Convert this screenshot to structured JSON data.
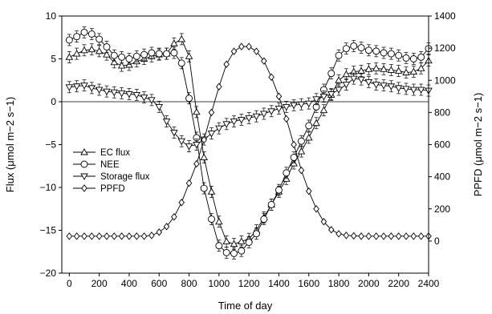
{
  "chart_data": {
    "type": "line",
    "xlabel": "Time of day",
    "ylabel_left": "Flux (μmol m−2 s−1)",
    "ylabel_right": "PPFD (μmol m−2 s−1)",
    "xlim": [
      -50,
      2400
    ],
    "ylim_left": [
      -20,
      10
    ],
    "ylim_right": [
      -200,
      1400
    ],
    "x_ticks": [
      "0",
      "200",
      "400",
      "600",
      "800",
      "1000",
      "1200",
      "1400",
      "1600",
      "1800",
      "2000",
      "2200",
      "2400"
    ],
    "y_left_ticks": [
      "10",
      "5",
      "0",
      "−5",
      "−10",
      "−15",
      "−20"
    ],
    "y_right_ticks": [
      "1400",
      "1200",
      "1000",
      "800",
      "600",
      "400",
      "200",
      "0"
    ],
    "x": [
      0,
      50,
      100,
      150,
      200,
      250,
      300,
      350,
      400,
      450,
      500,
      550,
      600,
      650,
      700,
      750,
      800,
      850,
      900,
      950,
      1000,
      1050,
      1100,
      1150,
      1200,
      1250,
      1300,
      1350,
      1400,
      1450,
      1500,
      1550,
      1600,
      1650,
      1700,
      1750,
      1800,
      1850,
      1900,
      1950,
      2000,
      2050,
      2100,
      2150,
      2200,
      2250,
      2300,
      2350,
      2400
    ],
    "zero_line": 0,
    "legend_position": "middle-left",
    "series": [
      {
        "name": "EC flux",
        "axis": "left",
        "marker": "triangle-up",
        "values": [
          5.2,
          5.6,
          6.0,
          6.1,
          5.9,
          5.5,
          4.6,
          4.2,
          4.3,
          4.7,
          5.0,
          5.3,
          5.5,
          5.6,
          6.8,
          7.3,
          5.3,
          -1.2,
          -6.5,
          -10.5,
          -14.0,
          -16.3,
          -16.6,
          -16.3,
          -16.0,
          -15.0,
          -13.5,
          -12.0,
          -10.5,
          -9.0,
          -7.2,
          -5.8,
          -4.2,
          -2.5,
          -1.0,
          0.8,
          2.5,
          3.2,
          3.5,
          3.6,
          3.8,
          3.9,
          3.8,
          3.7,
          3.6,
          3.4,
          3.5,
          3.9,
          4.8
        ]
      },
      {
        "name": "NEE",
        "axis": "left",
        "marker": "circle",
        "values": [
          7.2,
          7.6,
          8.1,
          7.9,
          7.3,
          6.4,
          5.4,
          5.2,
          5.0,
          5.3,
          5.5,
          5.7,
          5.6,
          5.6,
          5.7,
          4.5,
          0.4,
          -4.2,
          -10.1,
          -13.7,
          -16.8,
          -17.6,
          -17.7,
          -17.4,
          -16.4,
          -15.4,
          -13.7,
          -12.0,
          -10.3,
          -8.3,
          -6.5,
          -4.6,
          -2.8,
          -0.6,
          1.4,
          3.3,
          5.4,
          6.2,
          6.5,
          6.3,
          6.0,
          5.9,
          5.7,
          5.6,
          5.4,
          5.1,
          5.0,
          5.2,
          6.2
        ]
      },
      {
        "name": "Storage flux",
        "axis": "left",
        "marker": "triangle-down",
        "values": [
          1.7,
          1.8,
          1.9,
          1.6,
          1.4,
          1.2,
          1.1,
          1.0,
          0.9,
          0.8,
          0.5,
          0.2,
          -0.6,
          -2.3,
          -3.6,
          -4.6,
          -5.2,
          -5.0,
          -4.4,
          -3.7,
          -3.1,
          -2.6,
          -2.3,
          -2.1,
          -1.9,
          -1.7,
          -1.4,
          -1.1,
          -0.8,
          -0.6,
          -0.4,
          -0.3,
          -0.2,
          0.3,
          0.6,
          0.9,
          1.4,
          2.0,
          2.7,
          2.6,
          2.3,
          2.0,
          1.9,
          1.8,
          1.6,
          1.5,
          1.4,
          1.4,
          1.3
        ]
      },
      {
        "name": "PPFD",
        "axis": "right",
        "marker": "diamond",
        "values": [
          30,
          30,
          30,
          30,
          30,
          30,
          30,
          30,
          30,
          30,
          30,
          35,
          55,
          90,
          150,
          240,
          360,
          480,
          630,
          800,
          960,
          1100,
          1180,
          1210,
          1210,
          1180,
          1120,
          1020,
          900,
          760,
          600,
          440,
          310,
          200,
          120,
          70,
          45,
          35,
          32,
          30,
          30,
          30,
          30,
          30,
          30,
          30,
          30,
          30,
          30
        ]
      }
    ]
  }
}
